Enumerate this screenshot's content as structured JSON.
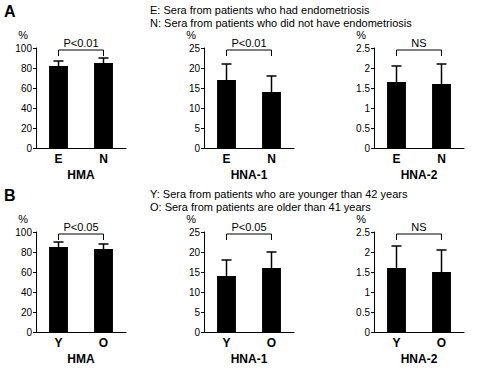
{
  "panels": [
    {
      "label": "A",
      "notes": [
        "E: Sera from patients who had endometriosis",
        "N: Sera from patients who did not have endometriosis"
      ]
    },
    {
      "label": "B",
      "notes": [
        "Y: Sera from patients who are younger than 42 years",
        "O: Sera from patients are older than 41 years"
      ]
    }
  ],
  "chart_data": [
    {
      "type": "bar",
      "x_label": "HMA",
      "y_label": "%",
      "categories": [
        "E",
        "N"
      ],
      "values": [
        82,
        85
      ],
      "errors": [
        5,
        5
      ],
      "color": "#000000",
      "ylim": [
        0,
        100
      ],
      "yticks": [
        0,
        20,
        40,
        60,
        80,
        100
      ],
      "grid": false,
      "annotations": [
        {
          "text": "P<0.01",
          "between": [
            "E",
            "N"
          ]
        }
      ]
    },
    {
      "type": "bar",
      "x_label": "HNA-1",
      "y_label": "%",
      "categories": [
        "E",
        "N"
      ],
      "values": [
        17,
        14
      ],
      "errors": [
        4,
        4
      ],
      "color": "#000000",
      "ylim": [
        0,
        25
      ],
      "yticks": [
        0,
        5,
        10,
        15,
        20,
        25
      ],
      "grid": false,
      "annotations": [
        {
          "text": "P<0.01",
          "between": [
            "E",
            "N"
          ]
        }
      ]
    },
    {
      "type": "bar",
      "x_label": "HNA-2",
      "y_label": "%",
      "categories": [
        "E",
        "N"
      ],
      "values": [
        1.65,
        1.6
      ],
      "errors": [
        0.4,
        0.5
      ],
      "color": "#000000",
      "ylim": [
        0,
        2.5
      ],
      "yticks": [
        0,
        0.5,
        1,
        1.5,
        2,
        2.5
      ],
      "grid": false,
      "annotations": [
        {
          "text": "NS",
          "between": [
            "E",
            "N"
          ]
        }
      ]
    },
    {
      "type": "bar",
      "x_label": "HMA",
      "y_label": "%",
      "categories": [
        "Y",
        "O"
      ],
      "values": [
        85,
        83
      ],
      "errors": [
        5,
        5
      ],
      "color": "#000000",
      "ylim": [
        0,
        100
      ],
      "yticks": [
        0,
        20,
        40,
        60,
        80,
        100
      ],
      "grid": false,
      "annotations": [
        {
          "text": "P<0.05",
          "between": [
            "Y",
            "O"
          ]
        }
      ]
    },
    {
      "type": "bar",
      "x_label": "HNA-1",
      "y_label": "%",
      "categories": [
        "Y",
        "O"
      ],
      "values": [
        14,
        16
      ],
      "errors": [
        4,
        4
      ],
      "color": "#000000",
      "ylim": [
        0,
        25
      ],
      "yticks": [
        0,
        5,
        10,
        15,
        20,
        25
      ],
      "grid": false,
      "annotations": [
        {
          "text": "P<0.05",
          "between": [
            "Y",
            "O"
          ]
        }
      ]
    },
    {
      "type": "bar",
      "x_label": "HNA-2",
      "y_label": "%",
      "categories": [
        "Y",
        "O"
      ],
      "values": [
        1.6,
        1.5
      ],
      "errors": [
        0.55,
        0.55
      ],
      "color": "#000000",
      "ylim": [
        0,
        2.5
      ],
      "yticks": [
        0,
        0.5,
        1,
        1.5,
        2,
        2.5
      ],
      "grid": false,
      "annotations": [
        {
          "text": "NS",
          "between": [
            "Y",
            "O"
          ]
        }
      ]
    }
  ]
}
